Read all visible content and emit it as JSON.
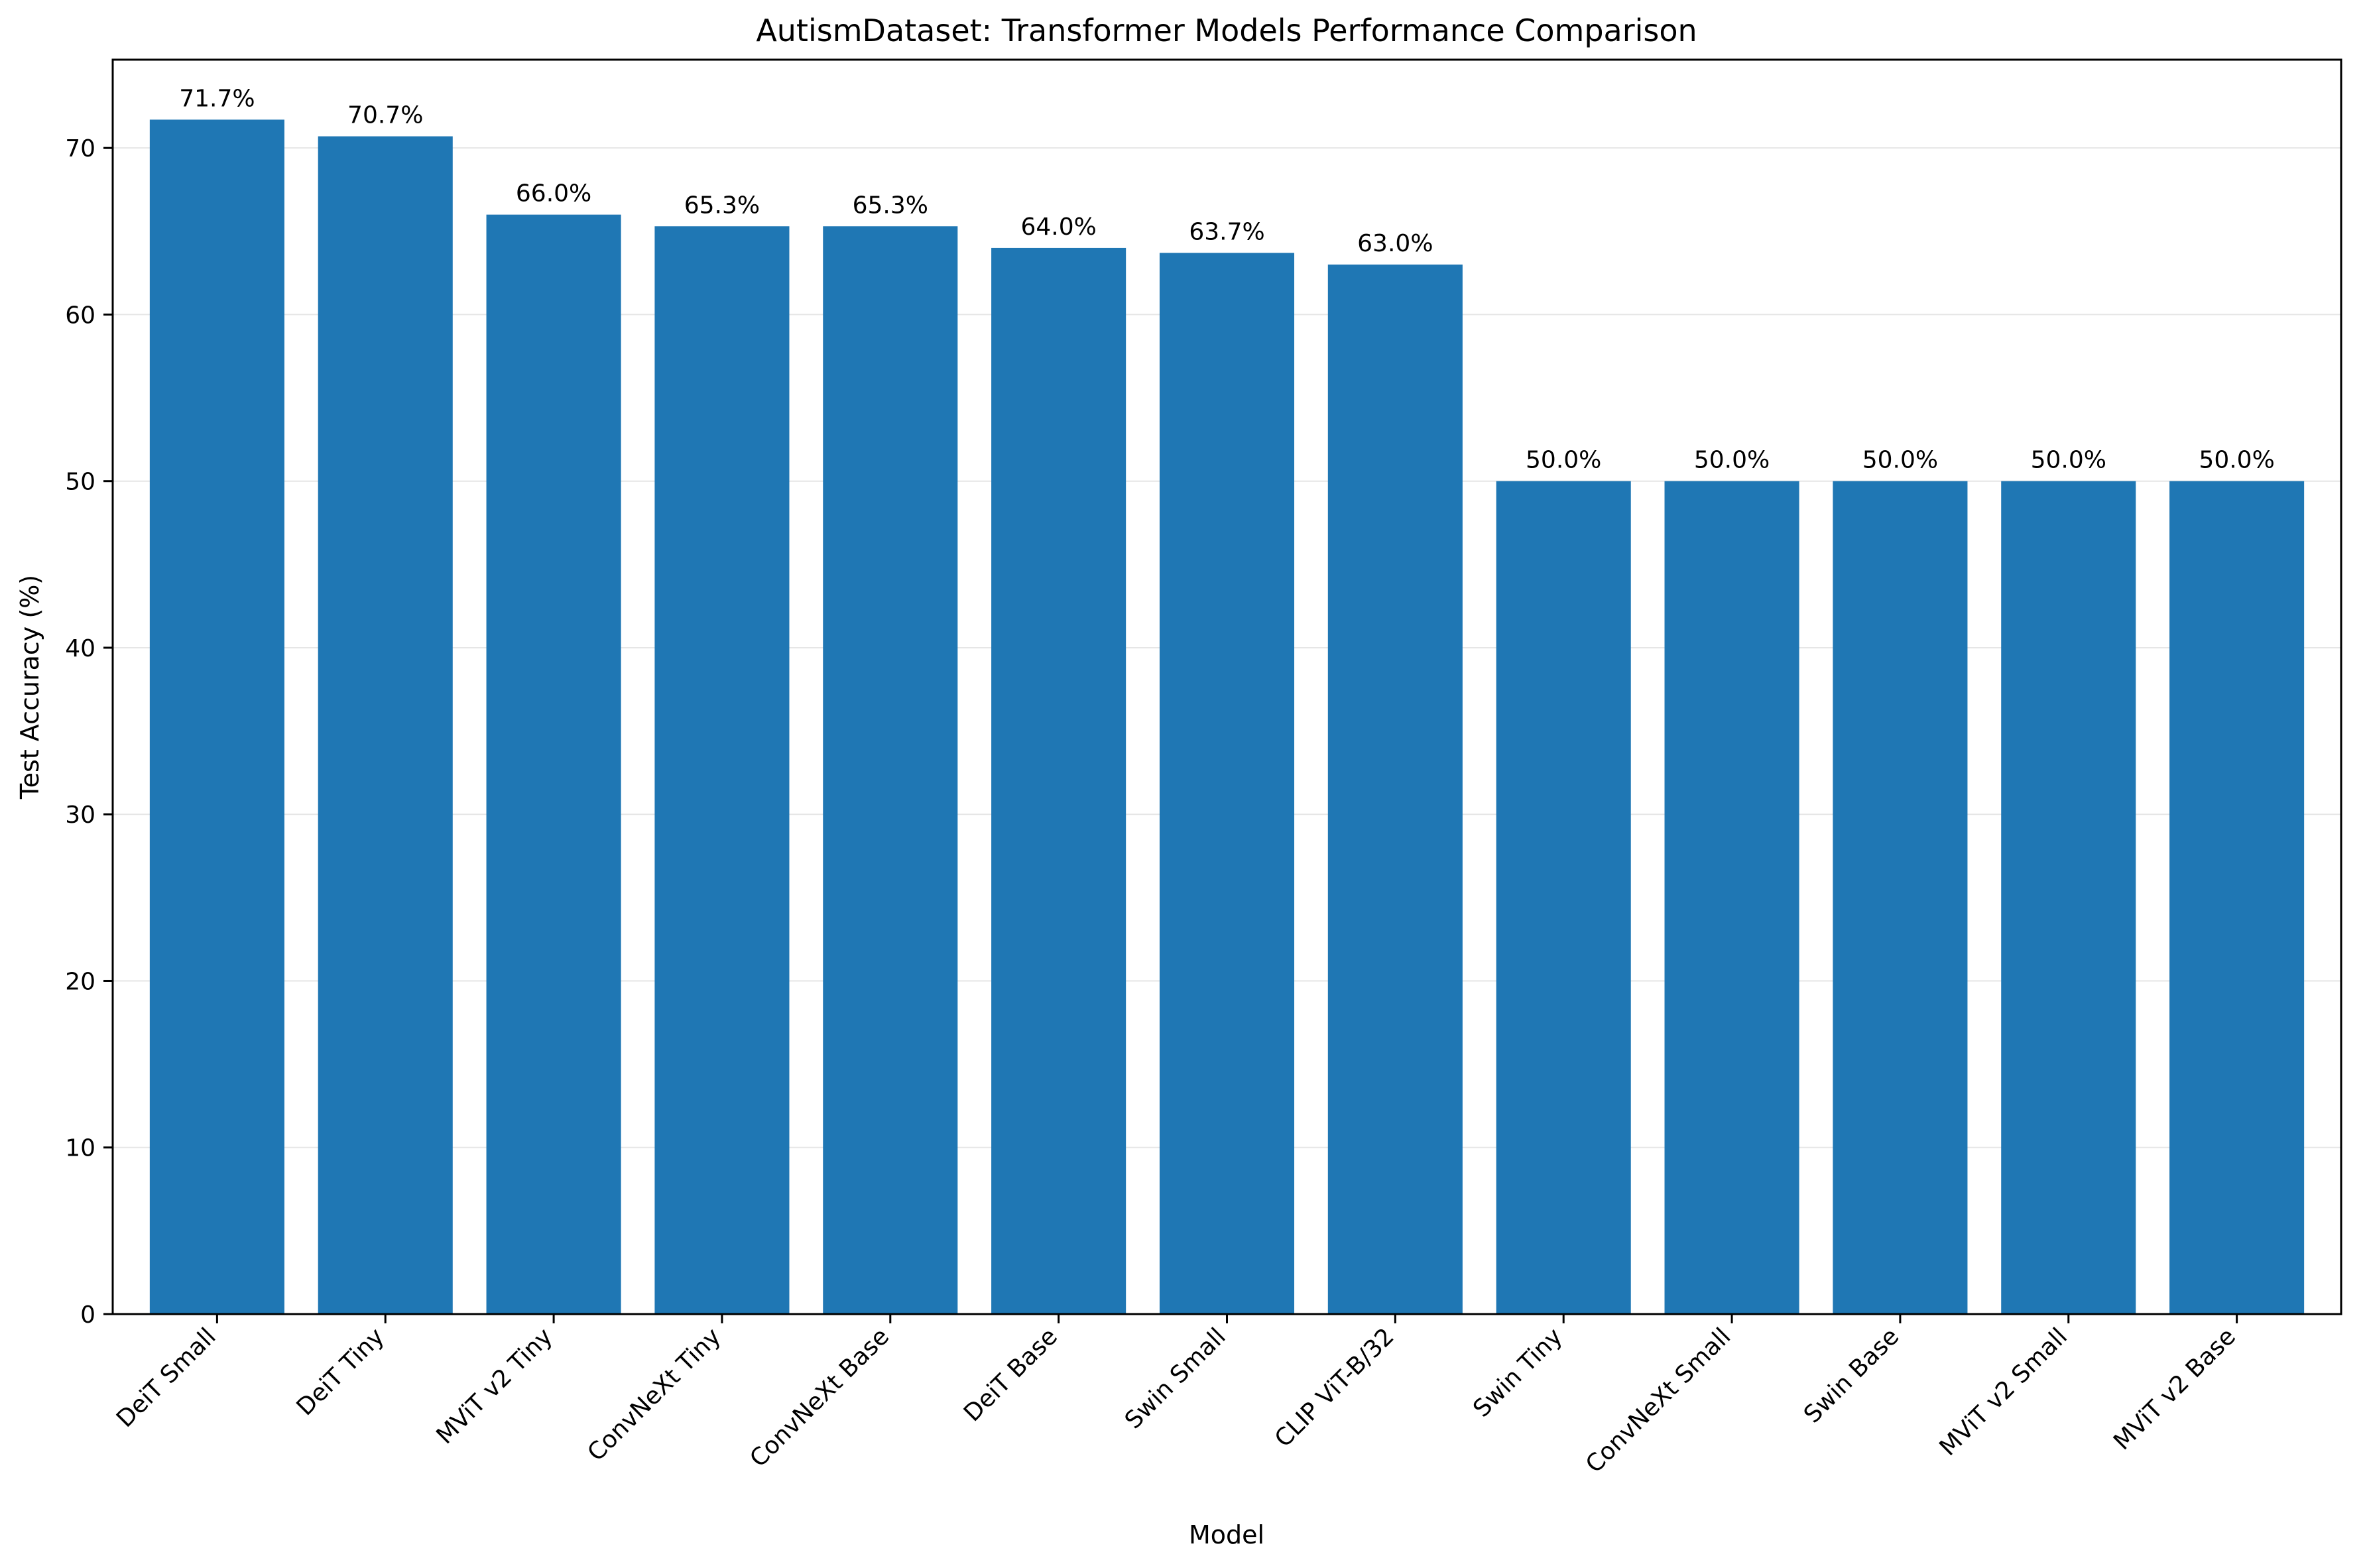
{
  "colors": {
    "bar": "#1f77b4",
    "grid": "#e6e6e6",
    "axis": "#000000",
    "background": "#ffffff"
  },
  "chart_data": {
    "type": "bar",
    "title": "AutismDataset: Transformer Models Performance Comparison",
    "xlabel": "Model",
    "ylabel": "Test Accuracy (%)",
    "ylim": [
      0,
      75.3
    ],
    "yticks": [
      0,
      10,
      20,
      30,
      40,
      50,
      60,
      70
    ],
    "grid": "horizontal",
    "legend": "none",
    "categories": [
      "DeiT Small",
      "DeiT Tiny",
      "MViT v2 Tiny",
      "ConvNeXt Tiny",
      "ConvNeXt Base",
      "DeiT Base",
      "Swin Small",
      "CLIP ViT-B/32",
      "Swin Tiny",
      "ConvNeXt Small",
      "Swin Base",
      "MViT v2 Small",
      "MViT v2 Base"
    ],
    "values": [
      71.7,
      70.7,
      66.0,
      65.3,
      65.3,
      64.0,
      63.7,
      63.0,
      50.0,
      50.0,
      50.0,
      50.0,
      50.0
    ],
    "data_labels": [
      "71.7%",
      "70.7%",
      "66.0%",
      "65.3%",
      "65.3%",
      "64.0%",
      "63.7%",
      "63.0%",
      "50.0%",
      "50.0%",
      "50.0%",
      "50.0%",
      "50.0%"
    ]
  }
}
